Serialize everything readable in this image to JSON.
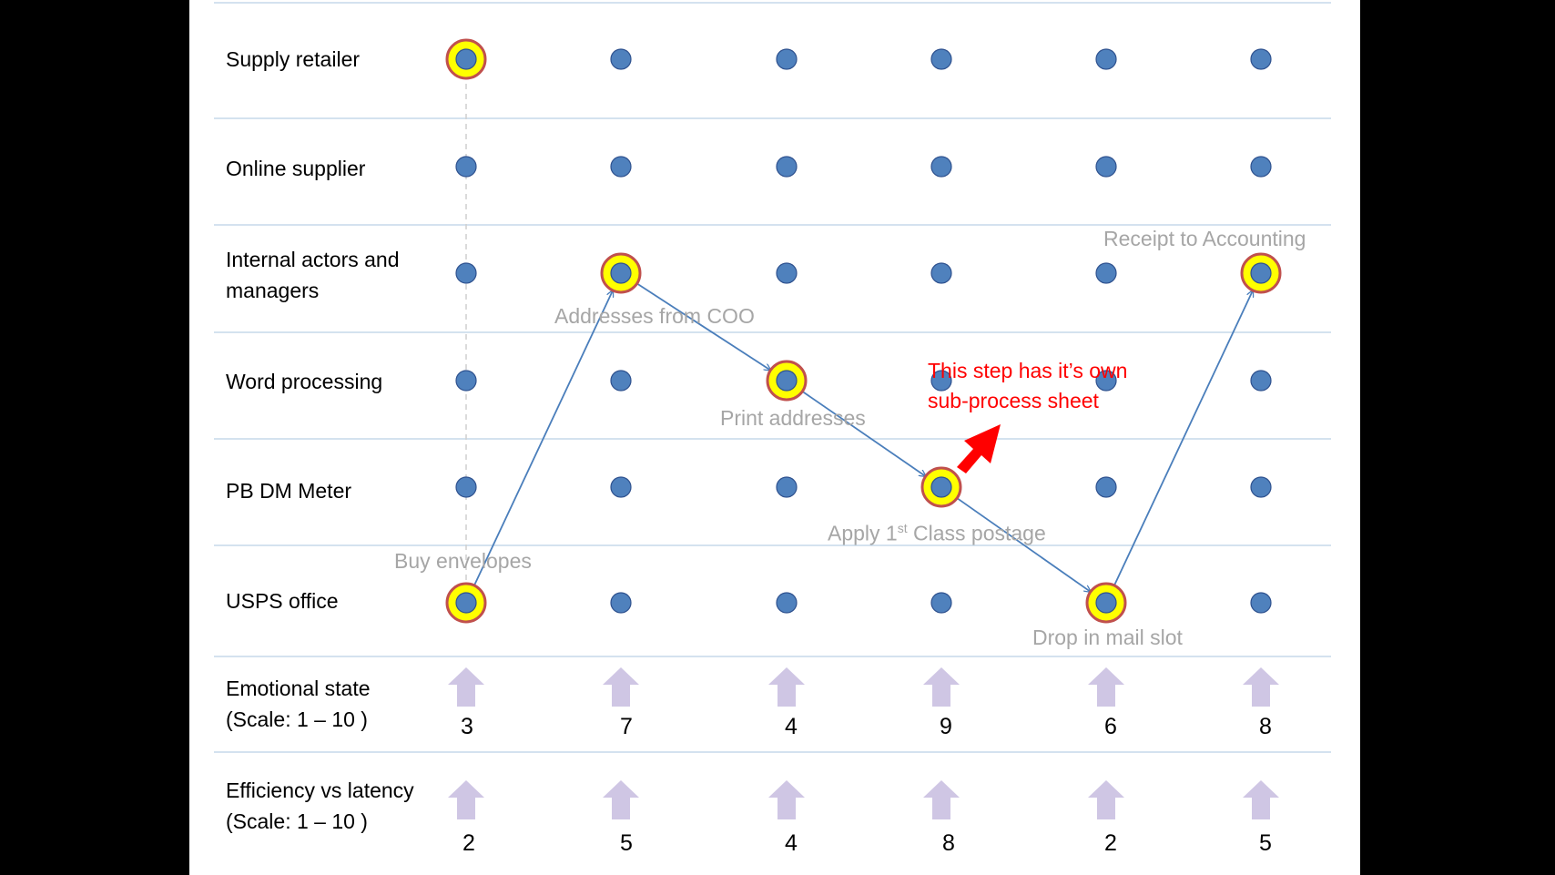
{
  "rows": [
    {
      "label": "Supply retailer"
    },
    {
      "label": "Online supplier"
    },
    {
      "label": "Internal  actors and\nmanagers"
    },
    {
      "label": "Word processing"
    },
    {
      "label": "PB DM  Meter"
    },
    {
      "label": "USPS office"
    }
  ],
  "metric_rows": [
    {
      "label": "Emotional  state\n(Scale: 1 – 10 )",
      "values": [
        "3",
        "7",
        "4",
        "9",
        "6",
        "8"
      ]
    },
    {
      "label": "Efficiency vs latency\n(Scale: 1 – 10 )",
      "values": [
        "2",
        "5",
        "4",
        "8",
        "2",
        "5"
      ]
    }
  ],
  "steps": [
    {
      "label": "Buy envelopes",
      "column": 1,
      "row": 6
    },
    {
      "label": "Addresses from COO",
      "column": 2,
      "row": 3
    },
    {
      "label": "Print addresses",
      "column": 3,
      "row": 4
    },
    {
      "label_main": "Apply 1",
      "label_sup": "st",
      "label_rest": " Class postage",
      "column": 4,
      "row": 5
    },
    {
      "label": "Drop in mail slot",
      "column": 5,
      "row": 6
    },
    {
      "label": "Receipt to Accounting",
      "column": 6,
      "row": 3
    }
  ],
  "highlighted_nodes": [
    {
      "column": 1,
      "row": 1
    }
  ],
  "note": {
    "text": "This step has it’s own\nsub-process sheet",
    "color": "#ff0000"
  },
  "colors": {
    "node_fill": "#4f81bd",
    "node_stroke": "#2f528f",
    "highlight_ring": "#ffff00",
    "highlight_border": "#c0504d",
    "flow_arrow": "#4a7ebb",
    "metric_arrow": "#cfc6e4",
    "row_separator": "#c5d9ea",
    "note_arrow": "#ff0000"
  }
}
